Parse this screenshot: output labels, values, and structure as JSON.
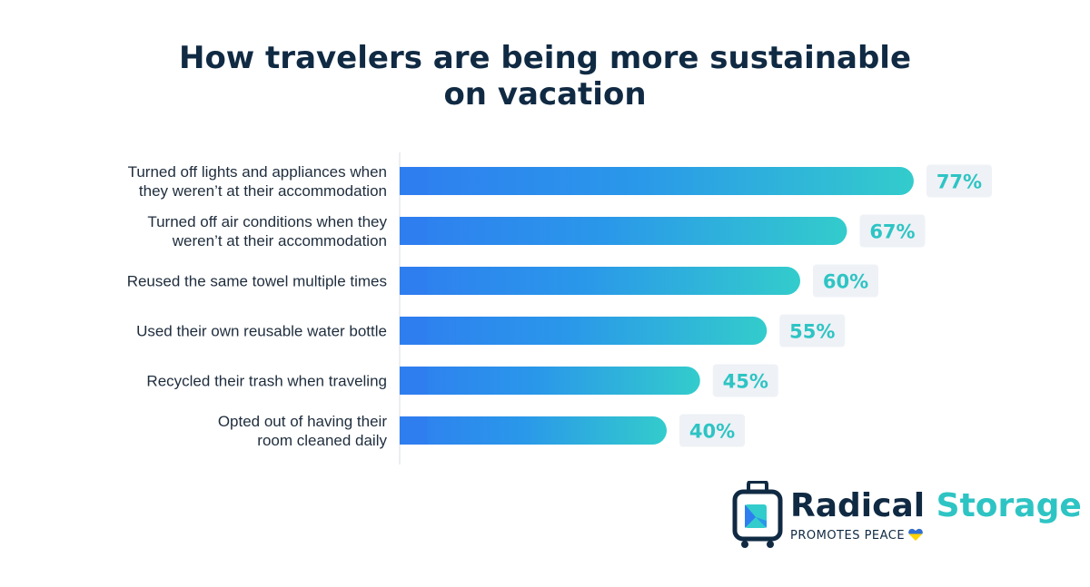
{
  "title_line1": "How travelers are being more sustainable",
  "title_line2": "on vacation",
  "colors": {
    "title": "#102a43",
    "bar_start": "#2f7ef0",
    "bar_end": "#33cccc",
    "value_text": "#2ec4c4",
    "value_box": "#eef1f6",
    "axis": "#d9dde3"
  },
  "chart_data": {
    "type": "bar",
    "orientation": "horizontal",
    "categories": [
      [
        "Turned off lights and appliances when",
        "they weren’t at their accommodation"
      ],
      [
        "Turned off air conditions when they",
        "weren’t at their accommodation"
      ],
      [
        "Reused the same towel multiple times"
      ],
      [
        "Used their own reusable water bottle"
      ],
      [
        "Recycled their trash when traveling"
      ],
      [
        "Opted out of having their",
        "room cleaned daily"
      ]
    ],
    "values": [
      77,
      67,
      60,
      55,
      45,
      40
    ],
    "value_labels": [
      "77%",
      "67%",
      "60%",
      "55%",
      "45%",
      "40%"
    ],
    "xlim": [
      0,
      100
    ],
    "grid": false,
    "legend": "none"
  },
  "logo": {
    "brand_part1": "Radical",
    "brand_part2": "Storage",
    "tagline": "PROMOTES PEACE",
    "icon": "luggage-icon",
    "heart_icon": "heart-icon",
    "heart_colors": [
      "#2f6fd6",
      "#ffd500"
    ]
  }
}
